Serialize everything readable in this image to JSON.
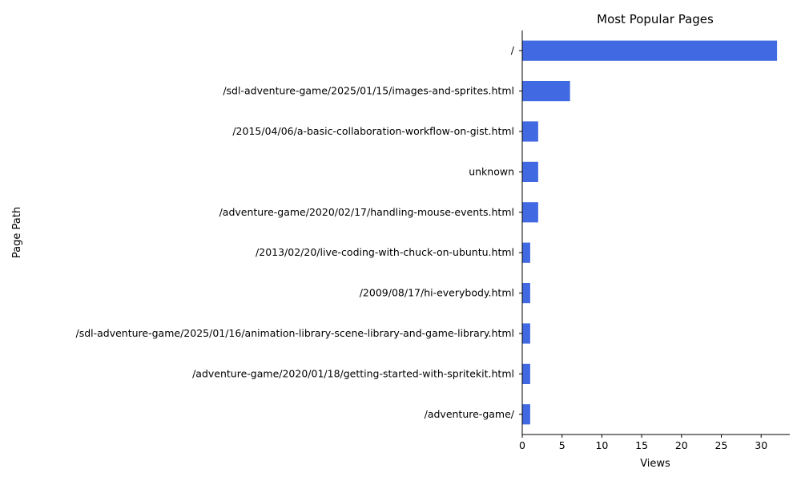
{
  "chart_data": {
    "type": "bar",
    "orientation": "horizontal",
    "title": "Most Popular Pages",
    "xlabel": "Views",
    "ylabel": "Page Path",
    "xlim": [
      0,
      33.6
    ],
    "xticks": [
      0,
      5,
      10,
      15,
      20,
      25,
      30
    ],
    "grid": false,
    "bar_color": "#4169e1",
    "categories": [
      "/",
      "/sdl-adventure-game/2025/01/15/images-and-sprites.html",
      "/2015/04/06/a-basic-collaboration-workflow-on-gist.html",
      "unknown",
      "/adventure-game/2020/02/17/handling-mouse-events.html",
      "/2013/02/20/live-coding-with-chuck-on-ubuntu.html",
      "/2009/08/17/hi-everybody.html",
      "/sdl-adventure-game/2025/01/16/animation-library-scene-library-and-game-library.html",
      "/adventure-game/2020/01/18/getting-started-with-spritekit.html",
      "/adventure-game/"
    ],
    "values": [
      32,
      6,
      2,
      2,
      2,
      1,
      1,
      1,
      1,
      1
    ]
  }
}
